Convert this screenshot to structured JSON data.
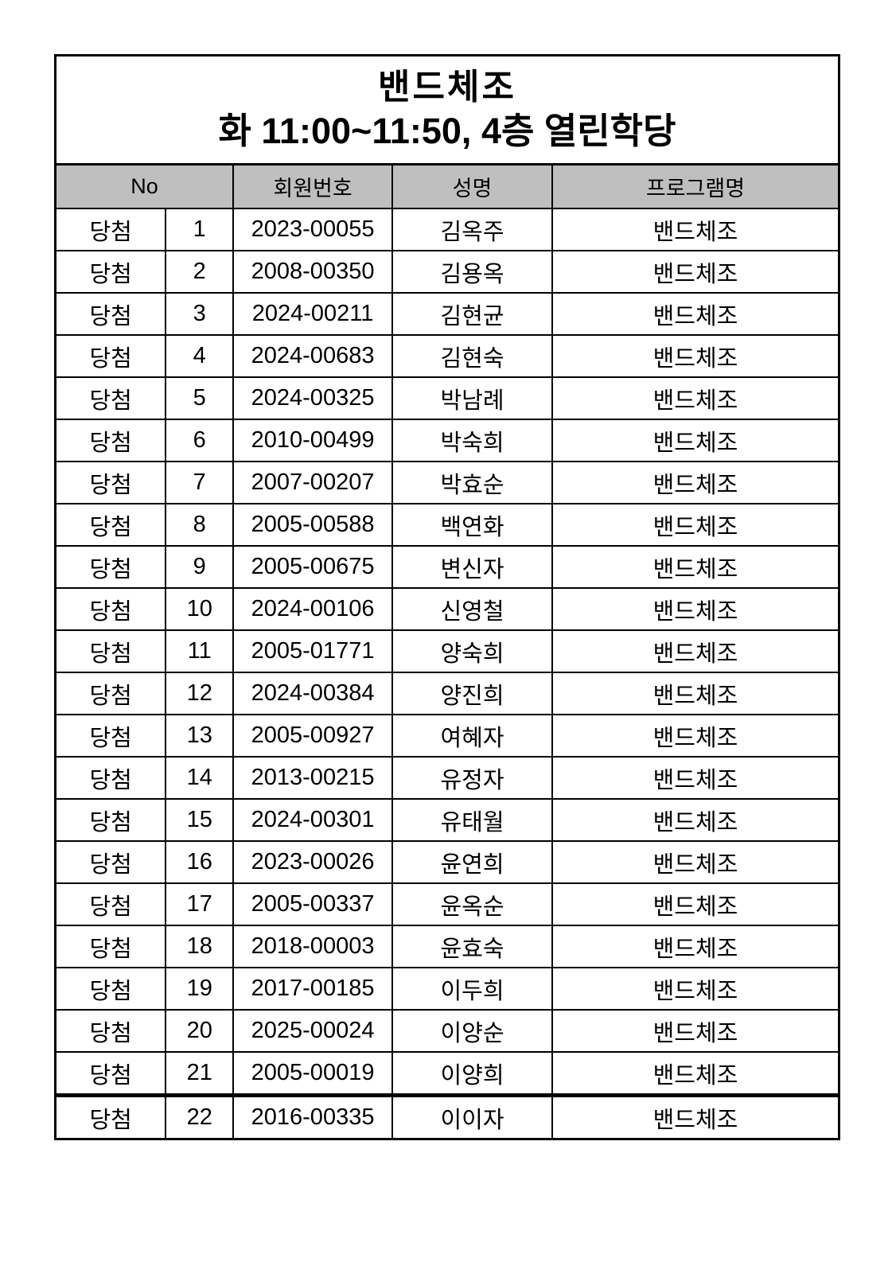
{
  "document": {
    "title": "밴드체조",
    "subtitle": "화 11:00~11:50, 4층 열린학당"
  },
  "table": {
    "headers": {
      "no": "No",
      "member_id": "회원번호",
      "name": "성명",
      "program": "프로그램명"
    },
    "rows": [
      {
        "status": "당첨",
        "no": "1",
        "member_id": "2023-00055",
        "name": "김옥주",
        "program": "밴드체조"
      },
      {
        "status": "당첨",
        "no": "2",
        "member_id": "2008-00350",
        "name": "김용옥",
        "program": "밴드체조"
      },
      {
        "status": "당첨",
        "no": "3",
        "member_id": "2024-00211",
        "name": "김현균",
        "program": "밴드체조"
      },
      {
        "status": "당첨",
        "no": "4",
        "member_id": "2024-00683",
        "name": "김현숙",
        "program": "밴드체조"
      },
      {
        "status": "당첨",
        "no": "5",
        "member_id": "2024-00325",
        "name": "박남례",
        "program": "밴드체조"
      },
      {
        "status": "당첨",
        "no": "6",
        "member_id": "2010-00499",
        "name": "박숙희",
        "program": "밴드체조"
      },
      {
        "status": "당첨",
        "no": "7",
        "member_id": "2007-00207",
        "name": "박효순",
        "program": "밴드체조"
      },
      {
        "status": "당첨",
        "no": "8",
        "member_id": "2005-00588",
        "name": "백연화",
        "program": "밴드체조"
      },
      {
        "status": "당첨",
        "no": "9",
        "member_id": "2005-00675",
        "name": "변신자",
        "program": "밴드체조"
      },
      {
        "status": "당첨",
        "no": "10",
        "member_id": "2024-00106",
        "name": "신영철",
        "program": "밴드체조"
      },
      {
        "status": "당첨",
        "no": "11",
        "member_id": "2005-01771",
        "name": "양숙희",
        "program": "밴드체조"
      },
      {
        "status": "당첨",
        "no": "12",
        "member_id": "2024-00384",
        "name": "양진희",
        "program": "밴드체조"
      },
      {
        "status": "당첨",
        "no": "13",
        "member_id": "2005-00927",
        "name": "여혜자",
        "program": "밴드체조"
      },
      {
        "status": "당첨",
        "no": "14",
        "member_id": "2013-00215",
        "name": "유정자",
        "program": "밴드체조"
      },
      {
        "status": "당첨",
        "no": "15",
        "member_id": "2024-00301",
        "name": "유태월",
        "program": "밴드체조"
      },
      {
        "status": "당첨",
        "no": "16",
        "member_id": "2023-00026",
        "name": "윤연희",
        "program": "밴드체조"
      },
      {
        "status": "당첨",
        "no": "17",
        "member_id": "2005-00337",
        "name": "윤옥순",
        "program": "밴드체조"
      },
      {
        "status": "당첨",
        "no": "18",
        "member_id": "2018-00003",
        "name": "윤효숙",
        "program": "밴드체조"
      },
      {
        "status": "당첨",
        "no": "19",
        "member_id": "2017-00185",
        "name": "이두희",
        "program": "밴드체조"
      },
      {
        "status": "당첨",
        "no": "20",
        "member_id": "2025-00024",
        "name": "이양순",
        "program": "밴드체조"
      },
      {
        "status": "당첨",
        "no": "21",
        "member_id": "2005-00019",
        "name": "이양희",
        "program": "밴드체조"
      },
      {
        "status": "당첨",
        "no": "22",
        "member_id": "2016-00335",
        "name": "이이자",
        "program": "밴드체조"
      }
    ]
  },
  "colors": {
    "header_bg": "#bfbfbf",
    "border": "#000000",
    "text": "#000000",
    "background": "#ffffff"
  }
}
